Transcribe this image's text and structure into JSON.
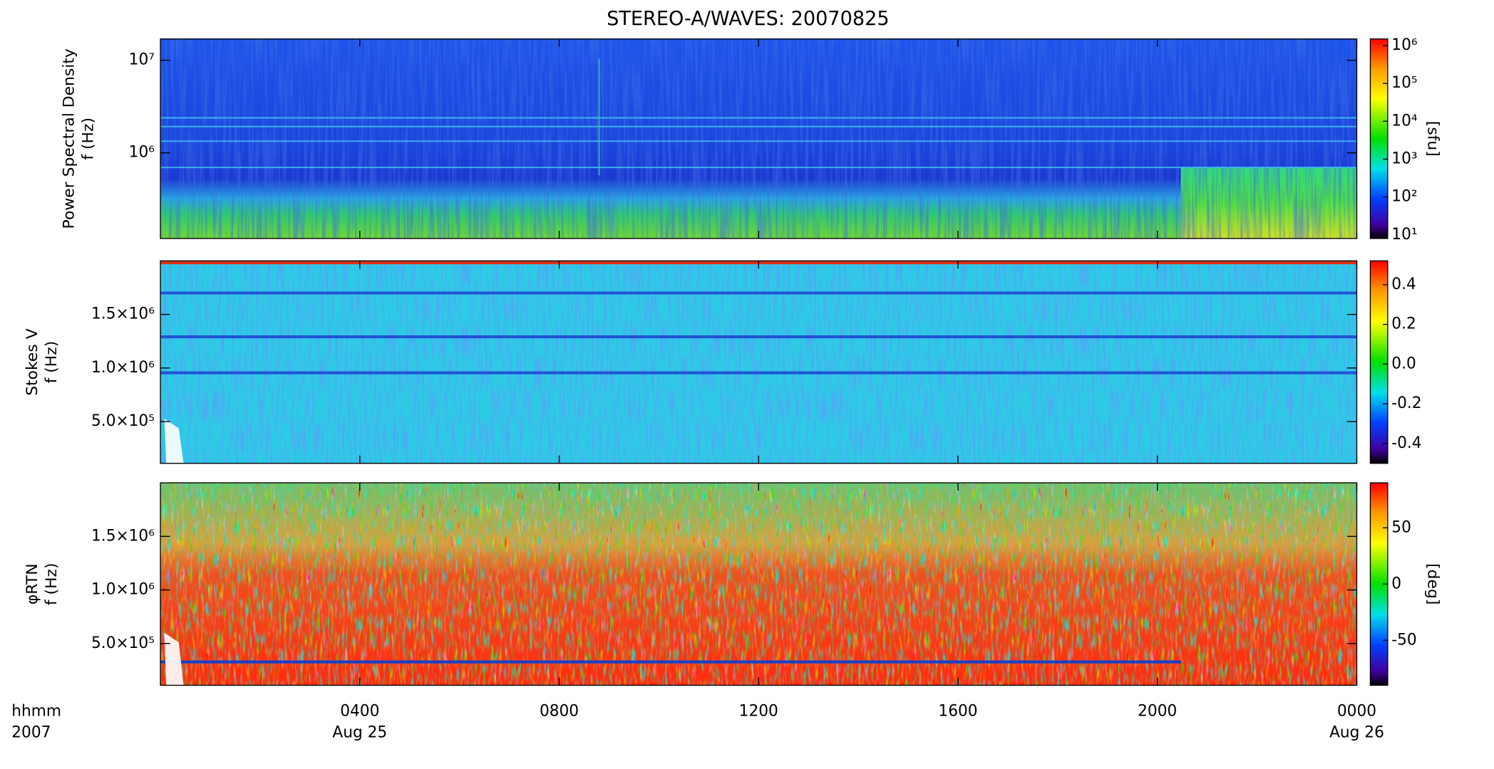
{
  "title": "STEREO-A/WAVES: 20070825",
  "x_axis": {
    "label": [
      "hhmm",
      "2007"
    ],
    "xlim": [
      0,
      24
    ],
    "xticks": [
      {
        "value": 4,
        "label": "0400",
        "date": "Aug 25"
      },
      {
        "value": 8,
        "label": "0800"
      },
      {
        "value": 12,
        "label": "1200"
      },
      {
        "value": 16,
        "label": "1600"
      },
      {
        "value": 20,
        "label": "2000"
      },
      {
        "value": 24,
        "label": "0000",
        "date": "Aug 26"
      }
    ]
  },
  "chart_data": [
    {
      "type": "heatmap",
      "ylabel": [
        "Power Spectral Density",
        "f (Hz)"
      ],
      "ylog": true,
      "ylim": [
        119000,
        17000000
      ],
      "yticks": [
        {
          "value": 1000000,
          "label": "10⁶"
        },
        {
          "value": 10000000,
          "label": "10⁷"
        }
      ],
      "colorbar": {
        "log": true,
        "lim": [
          8,
          1500000
        ],
        "label": "[sfu]",
        "ticks": [
          {
            "value": 10,
            "label": "10¹"
          },
          {
            "value": 100,
            "label": "10²"
          },
          {
            "value": 1000,
            "label": "10³"
          },
          {
            "value": 10000,
            "label": "10⁴"
          },
          {
            "value": 100000,
            "label": "10⁵"
          },
          {
            "value": 1000000,
            "label": "10⁶"
          }
        ]
      }
    },
    {
      "type": "heatmap",
      "ylabel": [
        "Stokes V",
        "f (Hz)"
      ],
      "ylog": false,
      "ylim": [
        110000,
        2000000
      ],
      "yticks": [
        {
          "value": 500000,
          "label": "5.0×10⁵"
        },
        {
          "value": 1000000,
          "label": "1.0×10⁶"
        },
        {
          "value": 1500000,
          "label": "1.5×10⁶"
        }
      ],
      "colorbar": {
        "log": false,
        "lim": [
          -0.5,
          0.52
        ],
        "ticks": [
          0.4,
          0.2,
          {
            "value": 0,
            "label": "0.0"
          },
          -0.2,
          -0.4
        ]
      }
    },
    {
      "type": "heatmap",
      "ylabel": [
        "φRTN",
        "f (Hz)"
      ],
      "ylog": false,
      "ylim": [
        110000,
        2000000
      ],
      "yticks": [
        {
          "value": 500000,
          "label": "5.0×10⁵"
        },
        {
          "value": 1000000,
          "label": "1.0×10⁶"
        },
        {
          "value": 1500000,
          "label": "1.5×10⁶"
        }
      ],
      "colorbar": {
        "log": false,
        "lim": [
          -90,
          90
        ],
        "label": "[deg]",
        "ticks": [
          50,
          0,
          -50
        ]
      }
    }
  ]
}
